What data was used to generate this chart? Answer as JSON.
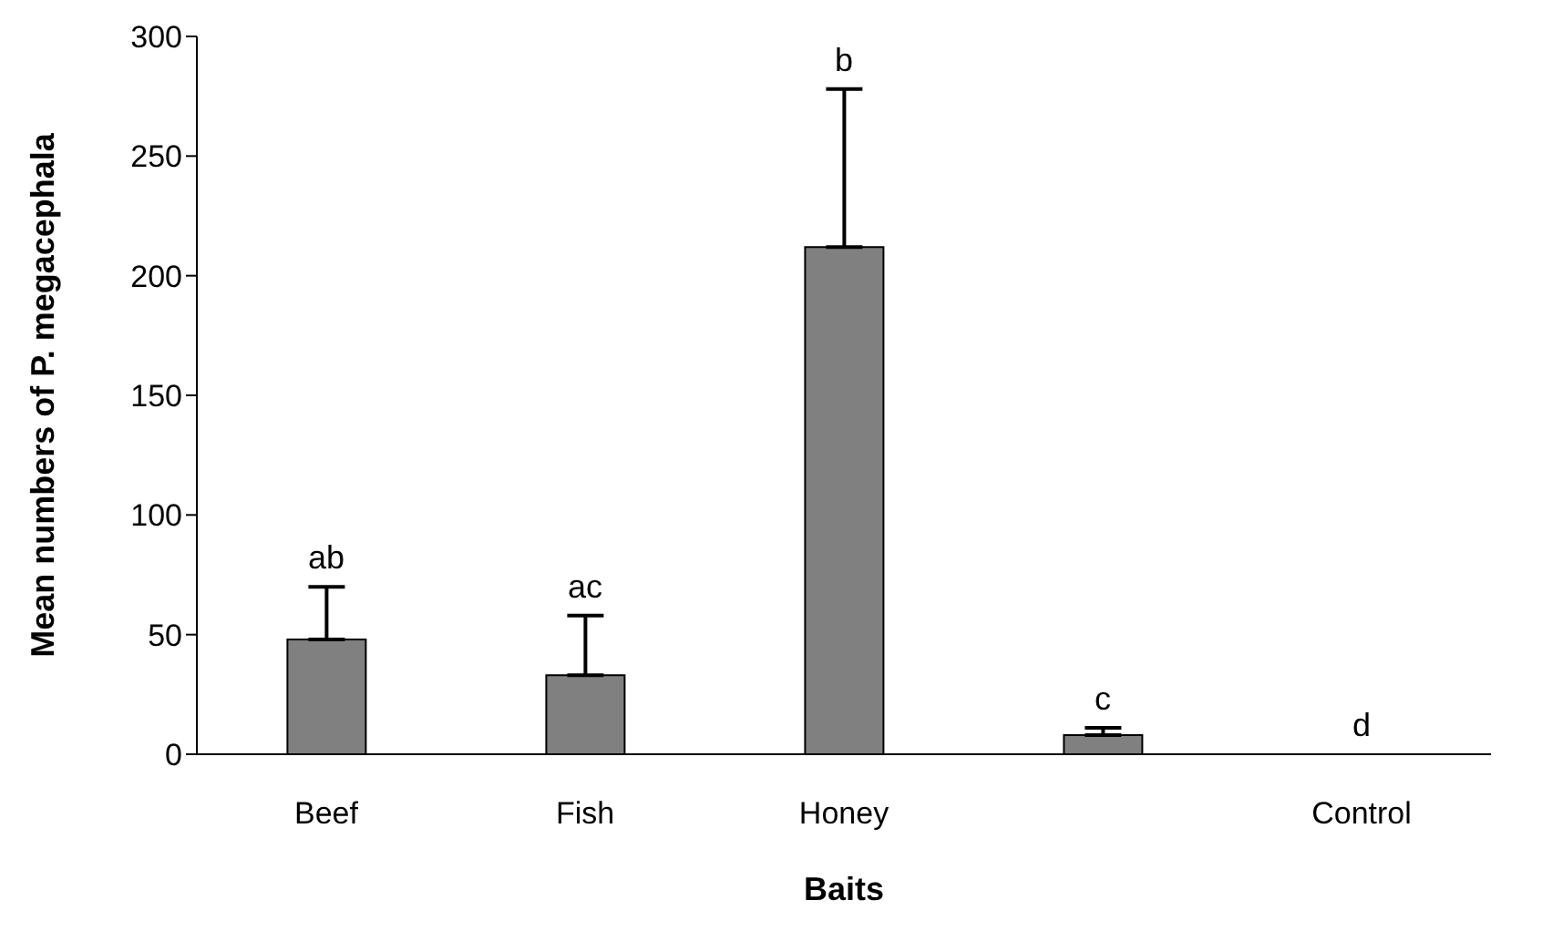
{
  "chart_data": {
    "type": "bar",
    "xlabel": "Baits",
    "ylabel": "Mean numbers of P. megacephala",
    "categories": [
      "Beef",
      "Fish",
      "Honey",
      null,
      "Control"
    ],
    "values": [
      48,
      33,
      212,
      8,
      0
    ],
    "errors": [
      [
        48,
        70
      ],
      [
        33,
        58
      ],
      [
        212,
        278
      ],
      [
        8,
        11
      ],
      null
    ],
    "color": "#808080",
    "ylim": [
      0,
      300
    ],
    "yticks": [
      0,
      50,
      100,
      150,
      200,
      250,
      300
    ],
    "grid": false,
    "legend": false,
    "annotations": [
      "ab",
      "ac",
      "b",
      "c",
      "d"
    ]
  }
}
